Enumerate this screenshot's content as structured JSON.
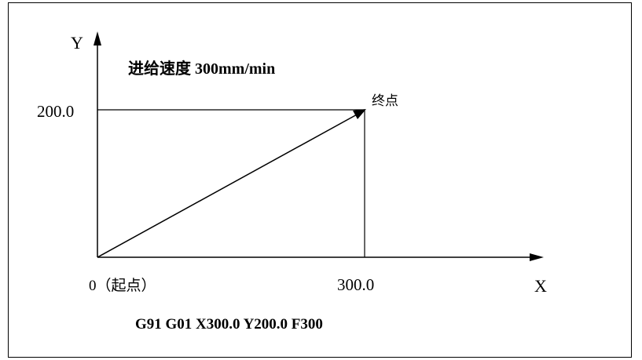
{
  "diagram": {
    "axis_y_label": "Y",
    "axis_x_label": "X",
    "feed_rate_text": "进给速度 300mm/min",
    "y_value_label": "200.0",
    "x_value_label": "300.0",
    "end_point_label": "终点",
    "origin_label": "0（起点）",
    "gcode": "G91 G01 X300.0 Y200.0 F300"
  }
}
